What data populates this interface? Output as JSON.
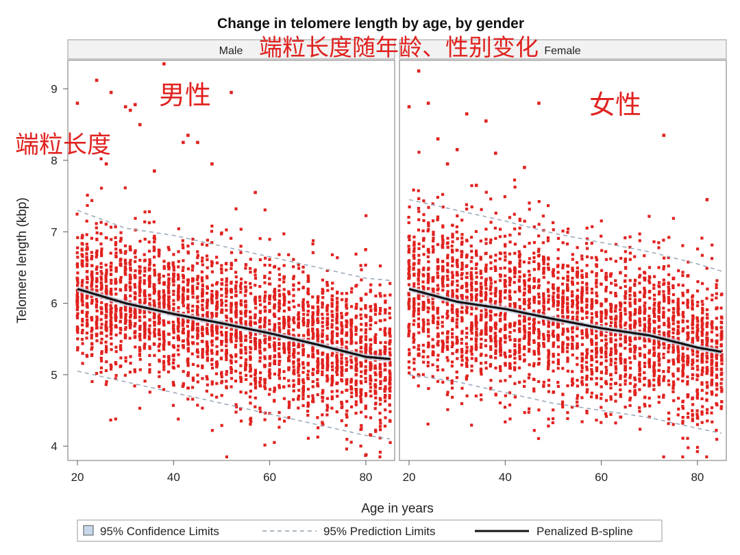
{
  "chart_data": {
    "type": "scatter",
    "title": "Change in telomere length by age, by gender",
    "xlabel": "Age in years",
    "ylabel": "Telomere length (kbp)",
    "xlim": [
      18,
      86
    ],
    "ylim": [
      3.8,
      9.4
    ],
    "x_ticks": [
      20,
      40,
      60,
      80
    ],
    "y_ticks": [
      4,
      5,
      6,
      7,
      8,
      9
    ],
    "grid": false,
    "legend_position": "bottom",
    "legend": [
      {
        "label": "95% Confidence Limits",
        "style": "shaded-box"
      },
      {
        "label": "95% Prediction Limits",
        "style": "dashed-line"
      },
      {
        "label": "Penalized B-spline",
        "style": "solid-line"
      }
    ],
    "point_color": "#e0221f",
    "panels": [
      {
        "name": "Male",
        "x_range": [
          20,
          85
        ],
        "spline": {
          "x": [
            20,
            30,
            40,
            50,
            60,
            70,
            80,
            85
          ],
          "y": [
            6.2,
            6.0,
            5.85,
            5.72,
            5.58,
            5.42,
            5.25,
            5.22
          ]
        },
        "pred_upper": {
          "x": [
            20,
            30,
            40,
            50,
            60,
            70,
            80,
            85
          ],
          "y": [
            7.3,
            7.05,
            6.95,
            6.8,
            6.65,
            6.5,
            6.35,
            6.32
          ]
        },
        "pred_lower": {
          "x": [
            20,
            30,
            40,
            50,
            60,
            70,
            80,
            85
          ],
          "y": [
            5.05,
            4.9,
            4.75,
            4.6,
            4.45,
            4.3,
            4.15,
            4.1
          ]
        },
        "outliers": {
          "x": [
            20,
            24,
            27,
            30,
            31,
            32,
            36,
            38,
            42,
            43,
            45,
            48,
            52,
            57,
            33,
            26
          ],
          "y": [
            8.8,
            9.12,
            8.95,
            8.75,
            8.7,
            8.78,
            7.85,
            9.35,
            8.25,
            8.35,
            8.25,
            7.95,
            8.95,
            7.55,
            8.5,
            7.95
          ]
        }
      },
      {
        "name": "Female",
        "x_range": [
          20,
          85
        ],
        "spline": {
          "x": [
            20,
            30,
            40,
            50,
            60,
            70,
            80,
            85
          ],
          "y": [
            6.2,
            6.02,
            5.92,
            5.78,
            5.65,
            5.55,
            5.38,
            5.32
          ]
        },
        "pred_upper": {
          "x": [
            20,
            30,
            40,
            50,
            60,
            70,
            80,
            85
          ],
          "y": [
            7.45,
            7.3,
            7.15,
            6.98,
            6.85,
            6.72,
            6.55,
            6.45
          ]
        },
        "pred_lower": {
          "x": [
            20,
            30,
            40,
            50,
            60,
            70,
            80,
            85
          ],
          "y": [
            5.0,
            4.9,
            4.75,
            4.6,
            4.5,
            4.4,
            4.25,
            4.18
          ]
        },
        "outliers": {
          "x": [
            20,
            22,
            24,
            26,
            30,
            32,
            36,
            38,
            47,
            73,
            82,
            28,
            34,
            44
          ],
          "y": [
            8.75,
            9.25,
            8.8,
            8.3,
            8.15,
            8.65,
            8.55,
            8.1,
            8.8,
            8.35,
            7.45,
            7.95,
            7.65,
            7.9
          ]
        }
      }
    ]
  },
  "overlay_text": {
    "title_cn": "端粒长度随年龄、性别变化",
    "male_cn": "男性",
    "female_cn": "女性",
    "ylabel_cn": "端粒长度"
  }
}
